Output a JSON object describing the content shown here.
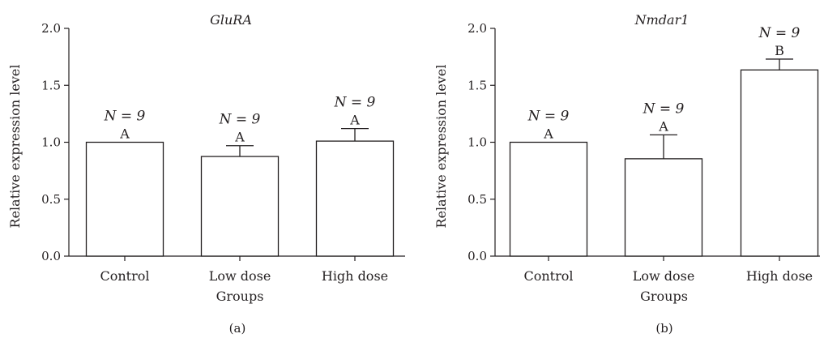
{
  "chart_data": [
    {
      "type": "bar",
      "title": "GluRA",
      "xlabel": "Groups",
      "ylabel": "Relative expression level",
      "panel_label": "(a)",
      "categories": [
        "Control",
        "Low dose",
        "High dose"
      ],
      "values": [
        1.0,
        0.875,
        1.01
      ],
      "error_upper": [
        0.0,
        0.095,
        0.11
      ],
      "n_labels": [
        "N = 9",
        "N = 9",
        "N = 9"
      ],
      "significance_letters": [
        "A",
        "A",
        "A"
      ],
      "ylim": [
        0.0,
        2.0
      ],
      "yticks": [
        "0.0",
        "0.5",
        "1.0",
        "1.5",
        "2.0"
      ],
      "colors": {
        "bar_fill": "#ffffff",
        "stroke": "#231f20"
      }
    },
    {
      "type": "bar",
      "title": "Nmdar1",
      "xlabel": "Groups",
      "ylabel": "Relative expression level",
      "panel_label": "(b)",
      "categories": [
        "Control",
        "Low dose",
        "High dose"
      ],
      "values": [
        1.0,
        0.855,
        1.635
      ],
      "error_upper": [
        0.0,
        0.21,
        0.095
      ],
      "n_labels": [
        "N = 9",
        "N = 9",
        "N = 9"
      ],
      "significance_letters": [
        "A",
        "A",
        "B"
      ],
      "ylim": [
        0.0,
        2.0
      ],
      "yticks": [
        "0.0",
        "0.5",
        "1.0",
        "1.5",
        "2.0"
      ],
      "colors": {
        "bar_fill": "#ffffff",
        "stroke": "#231f20"
      }
    }
  ]
}
